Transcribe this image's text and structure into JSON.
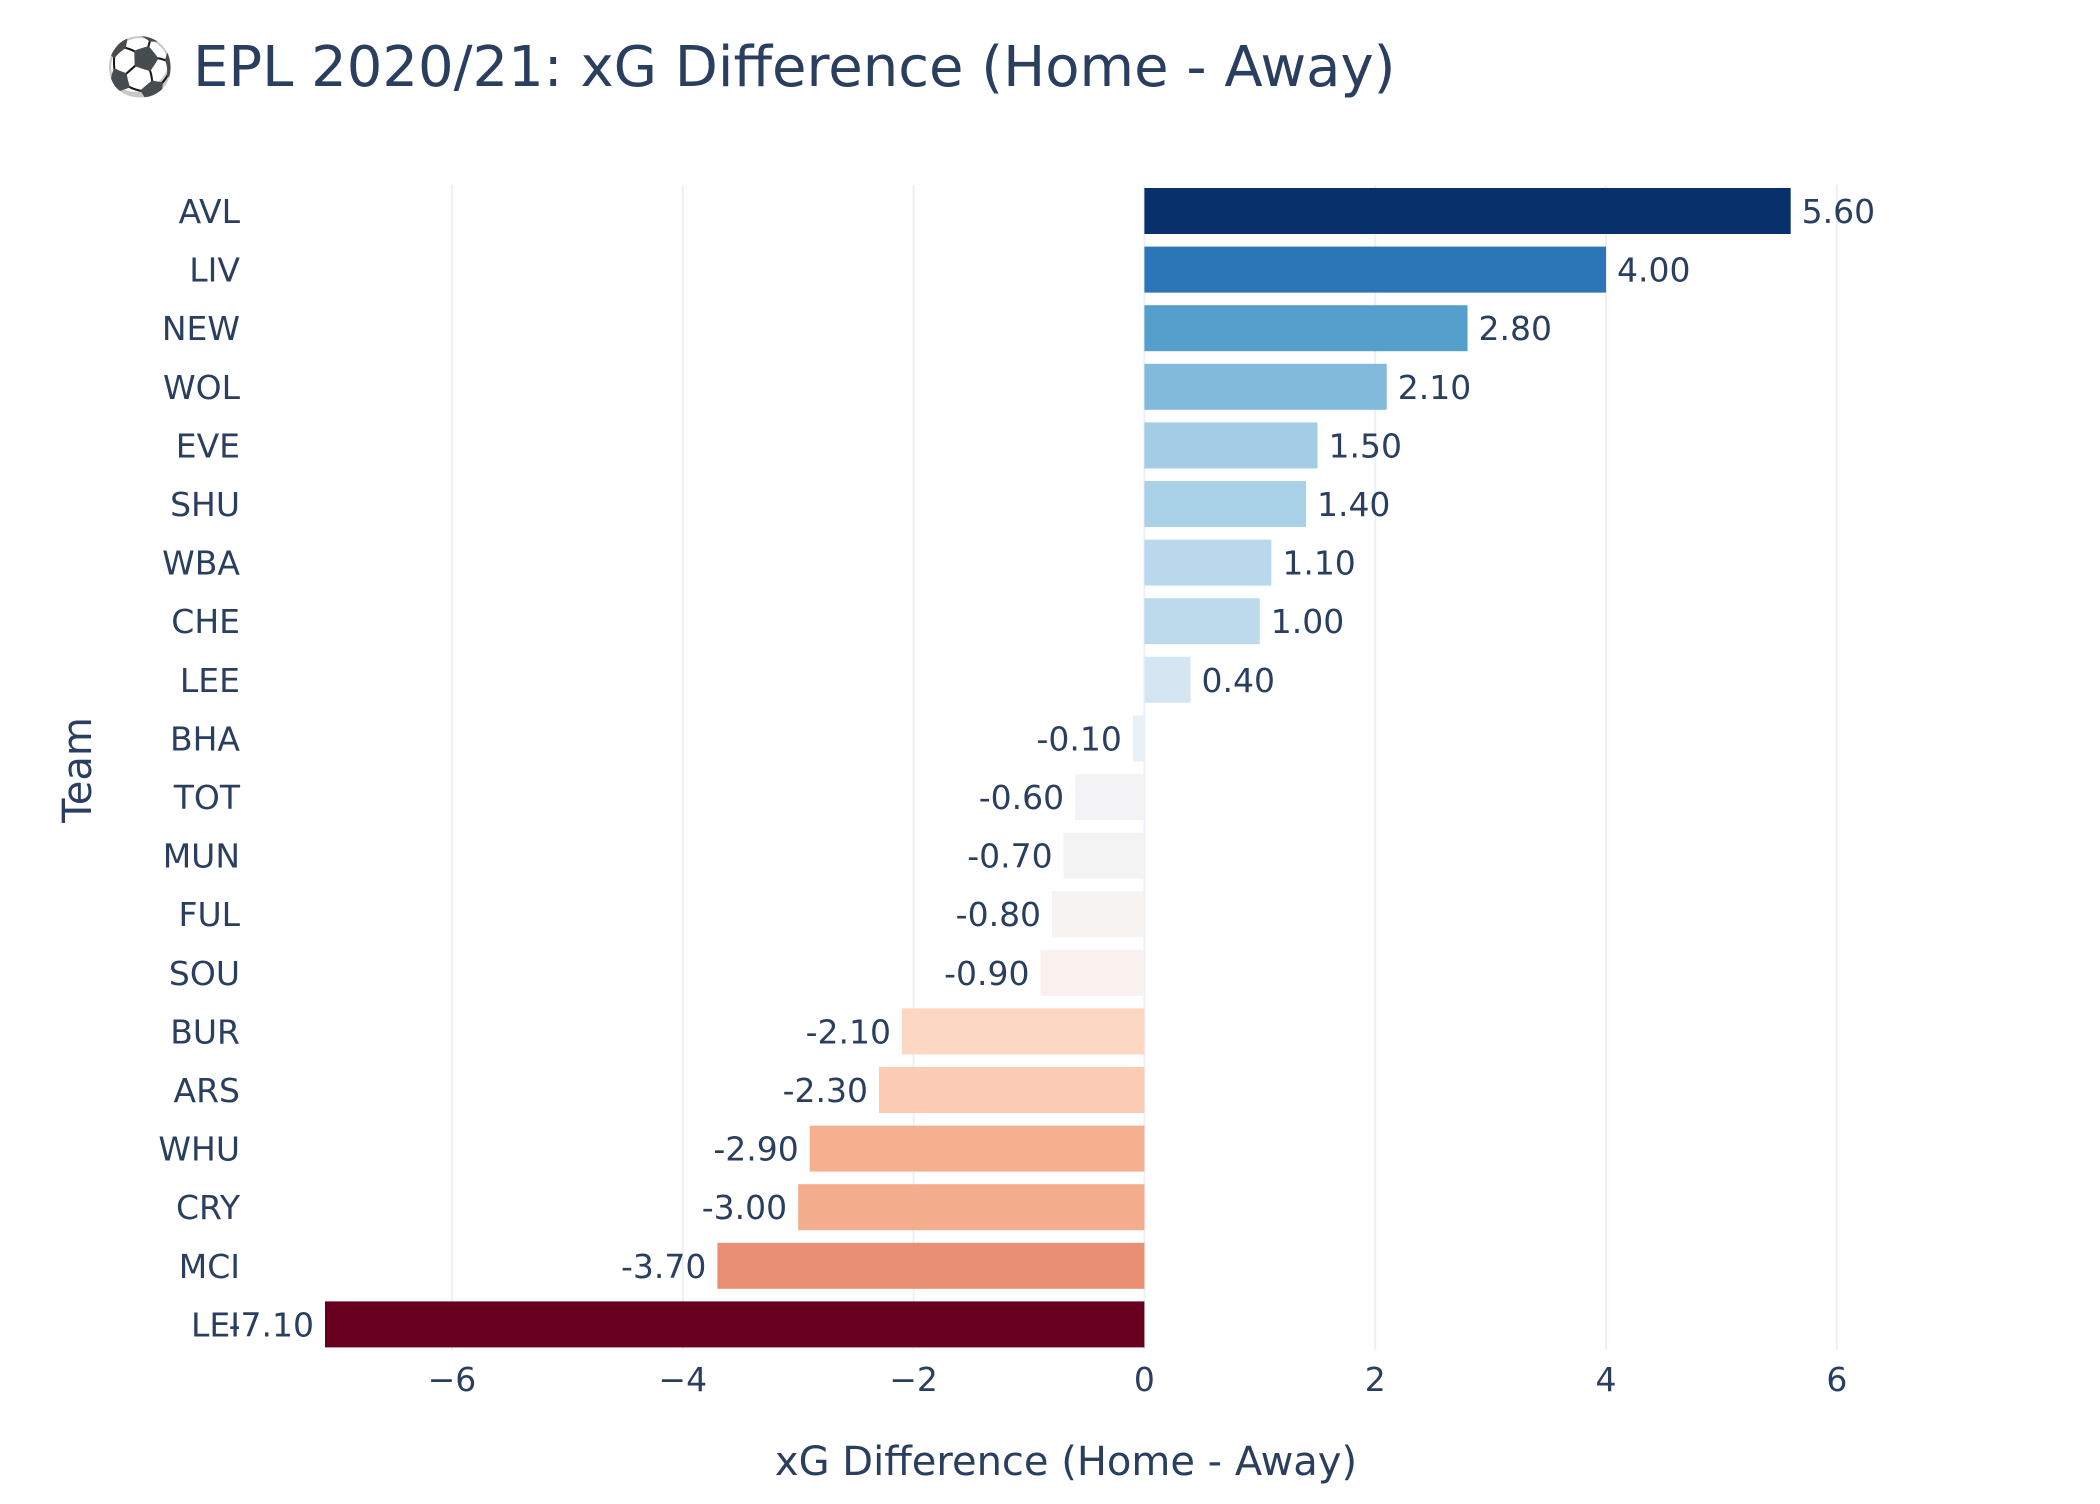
{
  "title_icon": "⚽",
  "chart_data": {
    "type": "bar",
    "orientation": "horizontal",
    "title": "EPL 2020/21: xG Difference (Home - Away)",
    "xlabel": "xG Difference (Home - Away)",
    "ylabel": "Team",
    "xlim": [
      -7.1,
      6.4
    ],
    "xticks": [
      -6,
      -4,
      -2,
      0,
      2,
      4,
      6
    ],
    "xtick_labels": [
      "−6",
      "−4",
      "−2",
      "0",
      "2",
      "4",
      "6"
    ],
    "grid": "vertical",
    "colorscale": "RdBu",
    "categories": [
      "AVL",
      "LIV",
      "NEW",
      "WOL",
      "EVE",
      "SHU",
      "WBA",
      "CHE",
      "LEE",
      "BHA",
      "TOT",
      "MUN",
      "FUL",
      "SOU",
      "BUR",
      "ARS",
      "WHU",
      "CRY",
      "MCI",
      "LEI"
    ],
    "values": [
      5.6,
      4.0,
      2.8,
      2.1,
      1.5,
      1.4,
      1.1,
      1.0,
      0.4,
      -0.1,
      -0.6,
      -0.7,
      -0.8,
      -0.9,
      -2.1,
      -2.3,
      -2.9,
      -3.0,
      -3.7,
      -7.1
    ],
    "value_labels": [
      "5.60",
      "4.00",
      "2.80",
      "2.10",
      "1.50",
      "1.40",
      "1.10",
      "1.00",
      "0.40",
      "-0.10",
      "-0.60",
      "-0.70",
      "-0.80",
      "-0.90",
      "-2.10",
      "-2.30",
      "-2.90",
      "-3.00",
      "-3.70",
      "-7.10"
    ],
    "bar_colors": [
      "#08306b",
      "#2c75b6",
      "#559fcd",
      "#82badb",
      "#a2cde4",
      "#a8d0e6",
      "#b9d8eb",
      "#bcdaec",
      "#d5e5f2",
      "#eaf0f7",
      "#f3f3f5",
      "#f4f3f3",
      "#f6f3f1",
      "#f8f1ee",
      "#fcd7c2",
      "#fbccb3",
      "#f5b090",
      "#f4ad8c",
      "#e98f73",
      "#67001f"
    ],
    "grid_color": "#ebf0f8",
    "text_color": "#2a3f5f"
  }
}
